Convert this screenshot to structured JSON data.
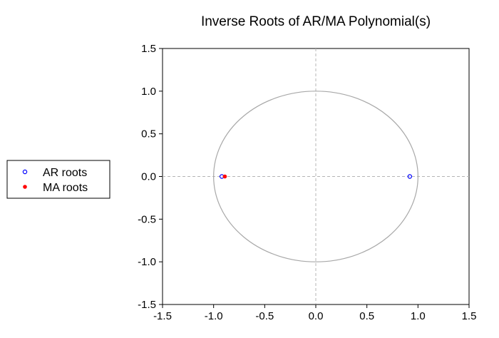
{
  "chart_data": {
    "type": "scatter",
    "title": "Inverse Roots of AR/MA Polynomial(s)",
    "xlabel": "",
    "ylabel": "",
    "xlim": [
      -1.5,
      1.5
    ],
    "ylim": [
      -1.5,
      1.5
    ],
    "x_ticks": [
      -1.5,
      -1.0,
      -0.5,
      0.0,
      0.5,
      1.0,
      1.5
    ],
    "y_ticks": [
      1.5,
      1.0,
      0.5,
      0.0,
      -0.5,
      -1.0,
      -1.5
    ],
    "x_tick_labels": [
      "-1.5",
      "-1.0",
      "-0.5",
      "0.0",
      "0.5",
      "1.0",
      "1.5"
    ],
    "y_tick_labels": [
      "1.5",
      "1.0",
      "0.5",
      "0.0",
      "-0.5",
      "-1.0",
      "-1.5"
    ],
    "unit_circle": true,
    "zero_lines": true,
    "legend_position": "left",
    "series": [
      {
        "name": "AR roots",
        "marker": "hollow-circle",
        "color": "#0000ff",
        "points": [
          {
            "x": -0.92,
            "y": 0.0
          },
          {
            "x": 0.92,
            "y": 0.0
          }
        ]
      },
      {
        "name": "MA roots",
        "marker": "filled-circle",
        "color": "#ff0000",
        "points": [
          {
            "x": -0.89,
            "y": 0.0
          }
        ]
      }
    ]
  }
}
